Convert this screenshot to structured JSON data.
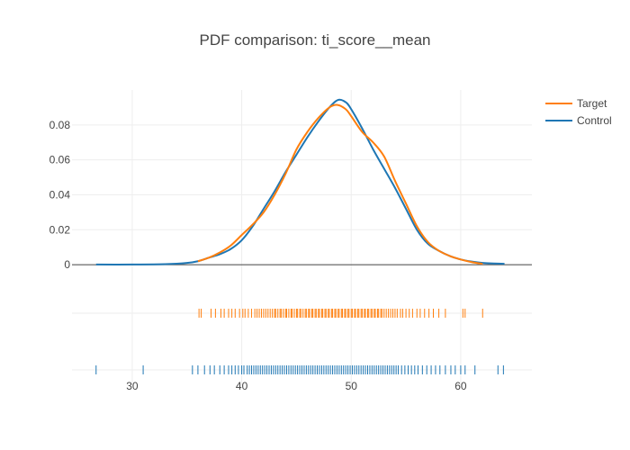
{
  "chart_data": {
    "type": "line",
    "title": "PDF comparison: ti_score__mean",
    "xlabel": "",
    "ylabel": "",
    "xlim": [
      24.5,
      66.5
    ],
    "ylim": [
      -0.002,
      0.1
    ],
    "x_ticks": [
      30,
      40,
      50,
      60
    ],
    "y_ticks": [
      0,
      0.02,
      0.04,
      0.06,
      0.08
    ],
    "y_tick_labels": [
      "0",
      "0.02",
      "0.04",
      "0.06",
      "0.08"
    ],
    "grid": true,
    "legend_position": "top-right",
    "series": [
      {
        "name": "Target",
        "color": "#ff7f0e",
        "x": [
          36,
          37,
          38,
          39,
          40,
          41,
          42,
          43,
          44,
          45,
          46,
          47,
          48,
          48.7,
          49.5,
          50,
          51,
          52,
          53,
          54,
          55,
          56,
          57,
          58,
          59,
          60,
          61,
          62
        ],
        "y": [
          0.002,
          0.004,
          0.007,
          0.011,
          0.017,
          0.023,
          0.03,
          0.04,
          0.052,
          0.066,
          0.076,
          0.084,
          0.09,
          0.0915,
          0.089,
          0.085,
          0.076,
          0.07,
          0.062,
          0.048,
          0.035,
          0.022,
          0.013,
          0.008,
          0.005,
          0.003,
          0.0015,
          0.0005
        ]
      },
      {
        "name": "Control",
        "color": "#1f77b4",
        "x": [
          26.7,
          30,
          33,
          35,
          36,
          37,
          38,
          39,
          40,
          41,
          42,
          43,
          44,
          45,
          46,
          47,
          48,
          48.8,
          49.5,
          50,
          51,
          52,
          53,
          54,
          55,
          56,
          57,
          58,
          59,
          60,
          61,
          62,
          63,
          64
        ],
        "y": [
          0.0001,
          0.0001,
          0.0003,
          0.001,
          0.002,
          0.004,
          0.006,
          0.009,
          0.014,
          0.022,
          0.032,
          0.042,
          0.053,
          0.063,
          0.073,
          0.082,
          0.09,
          0.0943,
          0.093,
          0.089,
          0.078,
          0.066,
          0.055,
          0.044,
          0.032,
          0.02,
          0.012,
          0.008,
          0.005,
          0.003,
          0.0018,
          0.001,
          0.0007,
          0.0005
        ]
      }
    ],
    "rug": [
      {
        "name": "Target",
        "color": "#ff7f0e",
        "x": [
          36.1,
          36.3,
          37.2,
          37.6,
          38.1,
          38.4,
          38.8,
          39.1,
          39.4,
          39.8,
          40.1,
          40.3,
          40.6,
          40.9,
          41.2,
          41.4,
          41.6,
          41.8,
          42.0,
          42.2,
          42.4,
          42.6,
          42.8,
          43.0,
          43.1,
          43.3,
          43.5,
          43.6,
          43.8,
          44.0,
          44.1,
          44.3,
          44.5,
          44.6,
          44.8,
          45.0,
          45.1,
          45.3,
          45.4,
          45.6,
          45.8,
          45.9,
          46.1,
          46.2,
          46.4,
          46.5,
          46.7,
          46.8,
          47.0,
          47.1,
          47.3,
          47.4,
          47.6,
          47.7,
          47.9,
          48.0,
          48.2,
          48.3,
          48.5,
          48.6,
          48.8,
          48.9,
          49.1,
          49.2,
          49.4,
          49.5,
          49.7,
          49.8,
          50.0,
          50.1,
          50.3,
          50.4,
          50.6,
          50.7,
          50.9,
          51.0,
          51.2,
          51.3,
          51.5,
          51.6,
          51.8,
          51.9,
          52.1,
          52.2,
          52.4,
          52.5,
          52.7,
          52.8,
          53.0,
          53.2,
          53.4,
          53.6,
          53.8,
          54.0,
          54.2,
          54.5,
          54.7,
          55.0,
          55.3,
          55.6,
          56.0,
          56.3,
          56.7,
          57.1,
          57.5,
          58.0,
          58.6,
          60.2,
          60.4,
          62.0
        ]
      },
      {
        "name": "Control",
        "color": "#1f77b4",
        "x": [
          26.7,
          31.0,
          35.5,
          36.0,
          36.6,
          37.1,
          37.5,
          38.0,
          38.4,
          38.8,
          39.1,
          39.4,
          39.7,
          40.0,
          40.2,
          40.5,
          40.7,
          40.9,
          41.1,
          41.3,
          41.5,
          41.7,
          41.9,
          42.1,
          42.3,
          42.5,
          42.7,
          42.9,
          43.1,
          43.3,
          43.5,
          43.7,
          43.9,
          44.1,
          44.3,
          44.5,
          44.7,
          44.9,
          45.1,
          45.3,
          45.5,
          45.7,
          45.9,
          46.1,
          46.3,
          46.5,
          46.7,
          46.9,
          47.1,
          47.3,
          47.5,
          47.7,
          47.9,
          48.1,
          48.3,
          48.5,
          48.7,
          48.9,
          49.1,
          49.3,
          49.5,
          49.7,
          49.9,
          50.1,
          50.3,
          50.5,
          50.7,
          50.9,
          51.1,
          51.3,
          51.5,
          51.7,
          51.9,
          52.1,
          52.3,
          52.5,
          52.7,
          52.9,
          53.1,
          53.3,
          53.5,
          53.7,
          53.9,
          54.1,
          54.3,
          54.6,
          54.9,
          55.2,
          55.5,
          55.8,
          56.1,
          56.5,
          56.9,
          57.3,
          57.7,
          58.1,
          58.6,
          59.1,
          59.5,
          60.0,
          60.4,
          61.3,
          63.4,
          63.9
        ]
      }
    ]
  }
}
